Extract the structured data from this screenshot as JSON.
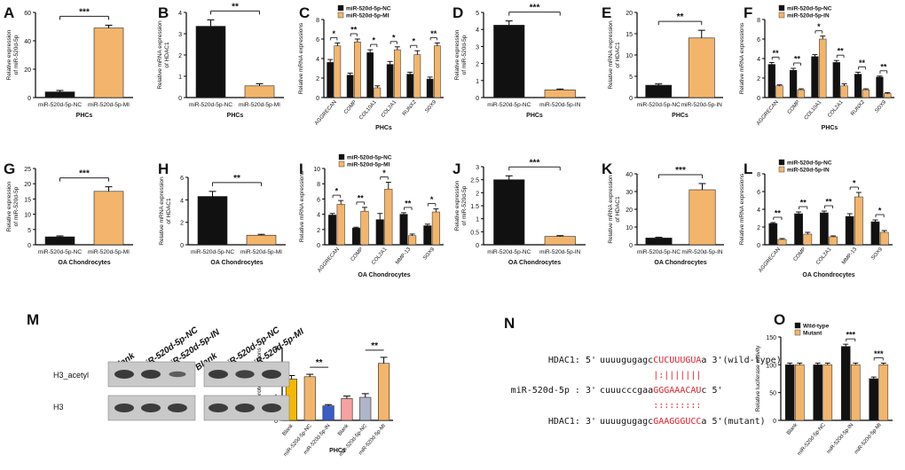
{
  "colors": {
    "nc": "#111111",
    "treat": "#f2b56b",
    "treat_edge": "#b47a33",
    "bracket": "#222222",
    "red": "#e0202a"
  },
  "figure": {
    "panels": [
      {
        "id": "A",
        "xlabel": "PHCs",
        "ylabel": [
          "Relative expression",
          "of miR-520d-5p"
        ],
        "ylim": [
          0,
          60
        ],
        "ticks": [
          0,
          20,
          40,
          60
        ],
        "categories": [
          "miR-520d-5p-NC",
          "miR-520d-5p-MI"
        ],
        "values": [
          4,
          49
        ],
        "errors": [
          1,
          2
        ],
        "sig": "***"
      },
      {
        "id": "B",
        "xlabel": "PHCs",
        "ylabel": [
          "Relative mRNA expression",
          "of HDAC1"
        ],
        "ylim": [
          0,
          4
        ],
        "ticks": [
          0,
          1,
          2,
          3,
          4
        ],
        "categories": [
          "miR-520d-5p-NC",
          "miR-520d-5p-MI"
        ],
        "values": [
          3.35,
          0.55
        ],
        "errors": [
          0.3,
          0.1
        ],
        "sig": "**"
      },
      {
        "id": "C",
        "xlabel": "PHCs",
        "ylabel": [
          "Relative mRNA expressions"
        ],
        "ylim": [
          0,
          8
        ],
        "ticks": [
          0,
          2,
          4,
          6,
          8
        ],
        "legend": [
          "miR-520d-5p-NC",
          "miR-520d-5p-MI"
        ],
        "categories": [
          "AGGRECAN",
          "COMP",
          "COL10A1",
          "COL2A1",
          "RUNX2",
          "SOX9"
        ],
        "series": [
          {
            "name": "miR-520d-5p-NC",
            "values": [
              3.6,
              2.3,
              4.6,
              3.4,
              2.4,
              1.9
            ],
            "errors": [
              0.3,
              0.2,
              0.3,
              0.3,
              0.2,
              0.2
            ]
          },
          {
            "name": "miR-520d-5p-MI",
            "values": [
              5.3,
              5.7,
              1.0,
              4.9,
              4.4,
              5.3
            ],
            "errors": [
              0.3,
              0.3,
              0.2,
              0.3,
              0.4,
              0.3
            ]
          }
        ],
        "sigs": [
          "*",
          "**",
          "*",
          "*",
          "*",
          "**"
        ]
      },
      {
        "id": "D",
        "xlabel": "PHCs",
        "ylabel": [
          "Relative expression",
          "of miR-520d-5p"
        ],
        "ylim": [
          0,
          5
        ],
        "ticks": [
          0,
          1,
          2,
          3,
          4,
          5
        ],
        "categories": [
          "miR-520d-5p-NC",
          "miR-520d-5p-IN"
        ],
        "values": [
          4.25,
          0.45
        ],
        "errors": [
          0.25,
          0.05
        ],
        "sig": "***"
      },
      {
        "id": "E",
        "xlabel": "PHCs",
        "ylabel": [
          "Relative mRNA expression",
          "of HDAC1"
        ],
        "ylim": [
          0,
          20
        ],
        "ticks": [
          0,
          5,
          10,
          15,
          20
        ],
        "categories": [
          "miR-520d-5p-NC",
          "miR-520d-5p-IN"
        ],
        "values": [
          2.9,
          14
        ],
        "errors": [
          0.3,
          1.8
        ],
        "sig": "**"
      },
      {
        "id": "F",
        "xlabel": "PHCs",
        "ylabel": [
          "Relative mRNA expressions"
        ],
        "ylim": [
          0,
          8
        ],
        "ticks": [
          0,
          2,
          4,
          6,
          8
        ],
        "legend": [
          "miR-520d-5p-NC",
          "miR-520d-5p-IN"
        ],
        "categories": [
          "AGGRECAN",
          "COMP",
          "COL10A1",
          "COL2A1",
          "RUNX2",
          "SOX9"
        ],
        "series": [
          {
            "name": "miR-520d-5p-NC",
            "values": [
              3.4,
              2.8,
              4.2,
              3.6,
              2.4,
              2.1
            ],
            "errors": [
              0.2,
              0.2,
              0.2,
              0.2,
              0.2,
              0.1
            ]
          },
          {
            "name": "miR-520d-5p-IN",
            "values": [
              1.2,
              0.8,
              6.0,
              1.2,
              0.8,
              0.4
            ],
            "errors": [
              0.1,
              0.1,
              0.3,
              0.2,
              0.1,
              0.1
            ]
          }
        ],
        "sigs": [
          "**",
          "**",
          "*",
          "**",
          "**",
          "**"
        ]
      },
      {
        "id": "G",
        "xlabel": "OA Chondrocytes",
        "ylabel": [
          "Relative expression",
          "of miR-520d-5p"
        ],
        "ylim": [
          0,
          25
        ],
        "ticks": [
          0,
          5,
          10,
          15,
          20,
          25
        ],
        "categories": [
          "miR-520d-5p-NC",
          "miR-520d-5p-MI"
        ],
        "values": [
          2.6,
          17.5
        ],
        "errors": [
          0.3,
          1.5
        ],
        "sig": "***"
      },
      {
        "id": "H",
        "xlabel": "OA Chondrocytes",
        "ylabel": [
          "Relative mRNA expression",
          "of HDAC1"
        ],
        "ylim": [
          0,
          6
        ],
        "ticks": [
          0,
          2,
          4,
          6
        ],
        "categories": [
          "miR-520d-5p-NC",
          "miR-520d-5p-MI"
        ],
        "values": [
          4.3,
          0.85
        ],
        "errors": [
          0.45,
          0.08
        ],
        "sig": "**"
      },
      {
        "id": "I",
        "xlabel": "OA Chondrocytes",
        "ylabel": [
          "Relative mRNA expressions"
        ],
        "ylim": [
          0,
          10
        ],
        "ticks": [
          0,
          2,
          4,
          6,
          8,
          10
        ],
        "legend": [
          "miR-520d-5p-NC",
          "miR-520d-5p-MI"
        ],
        "categories": [
          "AGGRECAN",
          "COMP",
          "COL2A1",
          "MMP-13",
          "SOX9"
        ],
        "series": [
          {
            "name": "miR-520d-5p-NC",
            "values": [
              3.9,
              2.2,
              3.3,
              4.0,
              2.5
            ],
            "errors": [
              0.2,
              0.1,
              0.8,
              0.2,
              0.2
            ]
          },
          {
            "name": "miR-520d-5p-MI",
            "values": [
              5.3,
              4.4,
              7.3,
              1.2,
              4.3
            ],
            "errors": [
              0.5,
              0.5,
              0.9,
              0.2,
              0.4
            ]
          }
        ],
        "sigs": [
          "*",
          "**",
          "*",
          "**",
          "*"
        ]
      },
      {
        "id": "J",
        "xlabel": "OA Chondrocytes",
        "ylabel": [
          "Relative expression",
          "of miR-520d-5p"
        ],
        "ylim": [
          0,
          3
        ],
        "ticks": [
          0,
          0.5,
          1,
          1.5,
          2,
          2.5,
          3
        ],
        "categories": [
          "miR-520d-5p-NC",
          "miR-520d-5p-IN"
        ],
        "values": [
          2.5,
          0.32
        ],
        "errors": [
          0.15,
          0.03
        ],
        "sig": "***"
      },
      {
        "id": "K",
        "xlabel": "OA Chondrocytes",
        "ylabel": [
          "Relative mRNA expression",
          "of HDAC1"
        ],
        "ylim": [
          0,
          40
        ],
        "ticks": [
          0,
          10,
          20,
          30,
          40
        ],
        "categories": [
          "miR-520d-5p-NC",
          "miR-520d-5p-IN"
        ],
        "values": [
          3.8,
          31
        ],
        "errors": [
          0.4,
          3.5
        ],
        "sig": "***"
      },
      {
        "id": "L",
        "xlabel": "OA Chondrocytes",
        "ylabel": [
          "Relative mRNA expressions"
        ],
        "ylim": [
          0,
          8
        ],
        "ticks": [
          0,
          2,
          4,
          6,
          8
        ],
        "legend": [
          "miR-520d-5p-NC",
          "miR-520d-5p-IN"
        ],
        "categories": [
          "AGGRECAN",
          "COMP",
          "COL2A1",
          "MMP-13",
          "SOX9"
        ],
        "series": [
          {
            "name": "miR-520d-5p-NC",
            "values": [
              2.4,
              3.5,
              3.6,
              3.2,
              2.6
            ],
            "errors": [
              0.1,
              0.2,
              0.2,
              0.3,
              0.2
            ]
          },
          {
            "name": "miR-520d-5p-IN",
            "values": [
              0.6,
              1.2,
              0.9,
              5.4,
              1.4
            ],
            "errors": [
              0.1,
              0.2,
              0.1,
              0.5,
              0.2
            ]
          }
        ],
        "sigs": [
          "**",
          "**",
          "**",
          "*",
          "*"
        ]
      },
      {
        "id": "M",
        "xlabel": "PHCs",
        "ylabel": [
          "Relative protein expressions"
        ],
        "ylim": [
          0,
          3
        ],
        "ticks": [
          0,
          1,
          2,
          3
        ],
        "categories": [
          "Blank",
          "miR-520d-5p-NC",
          "miR-520d-5p-IN",
          "Blank",
          "miR-520d-5p-NC",
          "miR-520d-5p-MI"
        ],
        "values": [
          1.7,
          1.8,
          0.6,
          0.9,
          0.95,
          2.35
        ],
        "errors": [
          0.15,
          0.1,
          0.05,
          0.1,
          0.15,
          0.25
        ],
        "sigs": [
          {
            "from": 1,
            "to": 2,
            "label": "**"
          },
          {
            "from": 4,
            "to": 5,
            "label": "**"
          }
        ]
      },
      {
        "id": "O",
        "xlabel": "",
        "ylabel": [
          "Relative luciferase activity"
        ],
        "ylim": [
          0,
          150
        ],
        "ticks": [
          0,
          50,
          100,
          150
        ],
        "legend": [
          "Wild-type",
          "Mutant"
        ],
        "categories": [
          "Blank",
          "miR-520d-5p-NC",
          "miR-520d-5p-IN",
          "miR-520d-5p-MI"
        ],
        "series": [
          {
            "name": "Wild-type",
            "values": [
              100,
              100,
              133,
              75
            ],
            "errors": [
              3,
              3,
              4,
              3
            ]
          },
          {
            "name": "Mutant",
            "values": [
              100,
              100,
              100,
              100
            ],
            "errors": [
              3,
              3,
              3,
              3
            ]
          }
        ],
        "sigs": [
          "",
          "",
          "***",
          "***"
        ]
      }
    ],
    "western_blot": {
      "lane_labels": [
        "Blank",
        "miR-520d-5p-NC",
        "miR-520d-5p-IN",
        "Blank",
        "miR-520d-5p-NC",
        "miR-520d-5p-MI"
      ],
      "row_labels": [
        "H3_acetyl",
        "H3"
      ]
    },
    "sequence_panel": {
      "label": "N",
      "rows": [
        {
          "name": "HDAC1: 5'",
          "black": "uuuugugagc",
          "red": "CUCUUUGUA",
          "tail": "a 3'(wild-type)"
        },
        {
          "name": "miR-520d-5p : 3'",
          "black": "cuuucccgaa",
          "red": "GGGAAACAU",
          "tail": "c 5'"
        },
        {
          "name": "HDAC1: 3'",
          "black": "uuuugugagc",
          "red": "GAAGGGUCC",
          "tail": "a 5'(mutant)"
        }
      ],
      "pair_wt": "|:|||||||",
      "pair_mut": ":::::::::"
    }
  },
  "chart_data": [
    {
      "type": "bar",
      "title": "A",
      "categories": [
        "miR-520d-5p-NC",
        "miR-520d-5p-MI"
      ],
      "values": [
        4,
        49
      ],
      "xlabel": "PHCs",
      "ylabel": "Relative expression of miR-520d-5p",
      "ylim": [
        0,
        60
      ]
    },
    {
      "type": "bar",
      "title": "B",
      "categories": [
        "miR-520d-5p-NC",
        "miR-520d-5p-MI"
      ],
      "values": [
        3.35,
        0.55
      ],
      "xlabel": "PHCs",
      "ylabel": "Relative mRNA expression of HDAC1",
      "ylim": [
        0,
        4
      ]
    },
    {
      "type": "bar",
      "title": "C",
      "categories": [
        "AGGRECAN",
        "COMP",
        "COL10A1",
        "COL2A1",
        "RUNX2",
        "SOX9"
      ],
      "series": [
        {
          "name": "miR-520d-5p-NC",
          "values": [
            3.6,
            2.3,
            4.6,
            3.4,
            2.4,
            1.9
          ]
        },
        {
          "name": "miR-520d-5p-MI",
          "values": [
            5.3,
            5.7,
            1.0,
            4.9,
            4.4,
            5.3
          ]
        }
      ],
      "xlabel": "PHCs",
      "ylabel": "Relative mRNA expressions",
      "ylim": [
        0,
        8
      ]
    },
    {
      "type": "bar",
      "title": "D",
      "categories": [
        "miR-520d-5p-NC",
        "miR-520d-5p-IN"
      ],
      "values": [
        4.25,
        0.45
      ],
      "xlabel": "PHCs",
      "ylabel": "Relative expression of miR-520d-5p",
      "ylim": [
        0,
        5
      ]
    },
    {
      "type": "bar",
      "title": "E",
      "categories": [
        "miR-520d-5p-NC",
        "miR-520d-5p-IN"
      ],
      "values": [
        2.9,
        14
      ],
      "xlabel": "PHCs",
      "ylabel": "Relative mRNA expression of HDAC1",
      "ylim": [
        0,
        20
      ]
    },
    {
      "type": "bar",
      "title": "F",
      "categories": [
        "AGGRECAN",
        "COMP",
        "COL10A1",
        "COL2A1",
        "RUNX2",
        "SOX9"
      ],
      "series": [
        {
          "name": "miR-520d-5p-NC",
          "values": [
            3.4,
            2.8,
            4.2,
            3.6,
            2.4,
            2.1
          ]
        },
        {
          "name": "miR-520d-5p-IN",
          "values": [
            1.2,
            0.8,
            6.0,
            1.2,
            0.8,
            0.4
          ]
        }
      ],
      "xlabel": "PHCs",
      "ylabel": "Relative mRNA expressions",
      "ylim": [
        0,
        8
      ]
    },
    {
      "type": "bar",
      "title": "G",
      "categories": [
        "miR-520d-5p-NC",
        "miR-520d-5p-MI"
      ],
      "values": [
        2.6,
        17.5
      ],
      "xlabel": "OA Chondrocytes",
      "ylabel": "Relative expression of miR-520d-5p",
      "ylim": [
        0,
        25
      ]
    },
    {
      "type": "bar",
      "title": "H",
      "categories": [
        "miR-520d-5p-NC",
        "miR-520d-5p-MI"
      ],
      "values": [
        4.3,
        0.85
      ],
      "xlabel": "OA Chondrocytes",
      "ylabel": "Relative mRNA expression of HDAC1",
      "ylim": [
        0,
        6
      ]
    },
    {
      "type": "bar",
      "title": "I",
      "categories": [
        "AGGRECAN",
        "COMP",
        "COL2A1",
        "MMP-13",
        "SOX9"
      ],
      "series": [
        {
          "name": "miR-520d-5p-NC",
          "values": [
            3.9,
            2.2,
            3.3,
            4.0,
            2.5
          ]
        },
        {
          "name": "miR-520d-5p-MI",
          "values": [
            5.3,
            4.4,
            7.3,
            1.2,
            4.3
          ]
        }
      ],
      "xlabel": "OA Chondrocytes",
      "ylabel": "Relative mRNA expressions",
      "ylim": [
        0,
        10
      ]
    },
    {
      "type": "bar",
      "title": "J",
      "categories": [
        "miR-520d-5p-NC",
        "miR-520d-5p-IN"
      ],
      "values": [
        2.5,
        0.32
      ],
      "xlabel": "OA Chondrocytes",
      "ylabel": "Relative expression of miR-520d-5p",
      "ylim": [
        0,
        3
      ]
    },
    {
      "type": "bar",
      "title": "K",
      "categories": [
        "miR-520d-5p-NC",
        "miR-520d-5p-IN"
      ],
      "values": [
        3.8,
        31
      ],
      "xlabel": "OA Chondrocytes",
      "ylabel": "Relative mRNA expression of HDAC1",
      "ylim": [
        0,
        40
      ]
    },
    {
      "type": "bar",
      "title": "L",
      "categories": [
        "AGGRECAN",
        "COMP",
        "COL2A1",
        "MMP-13",
        "SOX9"
      ],
      "series": [
        {
          "name": "miR-520d-5p-NC",
          "values": [
            2.4,
            3.5,
            3.6,
            3.2,
            2.6
          ]
        },
        {
          "name": "miR-520d-5p-IN",
          "values": [
            0.6,
            1.2,
            0.9,
            5.4,
            1.4
          ]
        }
      ],
      "xlabel": "OA Chondrocytes",
      "ylabel": "Relative mRNA expressions",
      "ylim": [
        0,
        8
      ]
    },
    {
      "type": "bar",
      "title": "M",
      "categories": [
        "Blank",
        "miR-520d-5p-NC",
        "miR-520d-5p-IN",
        "Blank",
        "miR-520d-5p-NC",
        "miR-520d-5p-MI"
      ],
      "values": [
        1.7,
        1.8,
        0.6,
        0.9,
        0.95,
        2.35
      ],
      "xlabel": "PHCs",
      "ylabel": "Relative protein expressions",
      "ylim": [
        0,
        3
      ]
    },
    {
      "type": "bar",
      "title": "O",
      "categories": [
        "Blank",
        "miR-520d-5p-NC",
        "miR-520d-5p-IN",
        "miR-520d-5p-MI"
      ],
      "series": [
        {
          "name": "Wild-type",
          "values": [
            100,
            100,
            133,
            75
          ]
        },
        {
          "name": "Mutant",
          "values": [
            100,
            100,
            100,
            100
          ]
        }
      ],
      "xlabel": "",
      "ylabel": "Relative luciferase activity",
      "ylim": [
        0,
        150
      ]
    }
  ]
}
